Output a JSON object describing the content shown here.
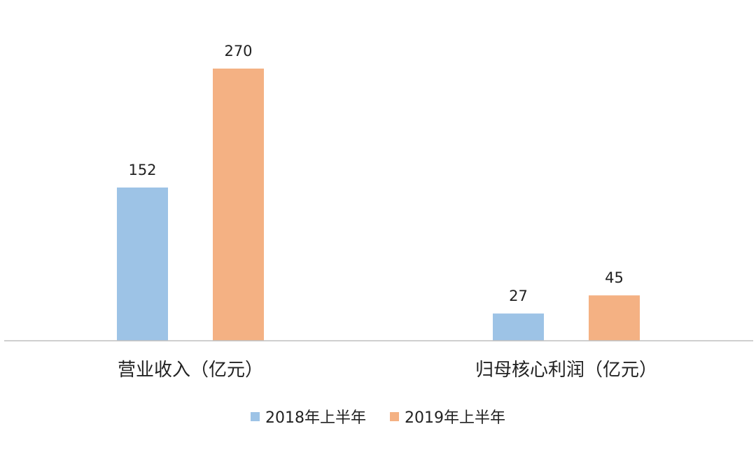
{
  "chart_data": {
    "type": "bar",
    "categories": [
      "营业收入（亿元）",
      "归母核心利润（亿元）"
    ],
    "series": [
      {
        "name": "2018年上半年",
        "values": [
          152,
          27
        ],
        "color": "#9dc3e6"
      },
      {
        "name": "2019年上半年",
        "values": [
          270,
          45
        ],
        "color": "#f4b183"
      }
    ],
    "ylim": [
      0,
      300
    ],
    "grid": false,
    "legend_position": "bottom"
  }
}
